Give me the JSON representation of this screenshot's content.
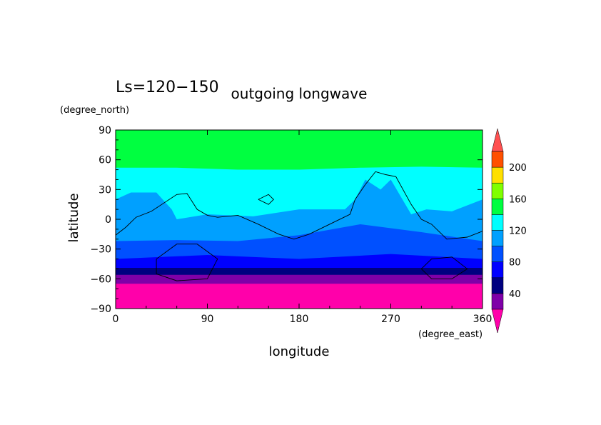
{
  "chart_data": {
    "type": "heatmap",
    "header_left": "Ls=120−150",
    "title": "outgoing longwave",
    "xlabel": "longitude",
    "ylabel": "latitude",
    "x_unit": "(degree_east)",
    "y_unit": "(degree_north)",
    "xlim": [
      0,
      360
    ],
    "ylim": [
      -90,
      90
    ],
    "x_ticks": [
      0,
      90,
      180,
      270,
      360
    ],
    "y_ticks": [
      90,
      60,
      30,
      0,
      -30,
      -60,
      -90
    ],
    "x_tick_labels": [
      "0",
      "90",
      "180",
      "270",
      "360"
    ],
    "y_tick_labels": [
      "90",
      "60",
      "30",
      "0",
      "−30",
      "−60",
      "−90"
    ],
    "colorbar": {
      "levels": [
        20,
        40,
        60,
        80,
        100,
        120,
        140,
        160,
        180,
        200,
        220
      ],
      "colors": [
        "#7f00a8",
        "#000080",
        "#0000ff",
        "#0050ff",
        "#00a0ff",
        "#00ffff",
        "#00ff40",
        "#80ff00",
        "#ffe000",
        "#ff5000",
        "#ff5050"
      ],
      "under_color": "#ff00aa",
      "over_color": "#ff5050",
      "tick_values": [
        40,
        80,
        120,
        160,
        200
      ],
      "tick_labels": [
        "40",
        "80",
        "120",
        "160",
        "200"
      ]
    },
    "bands": [
      {
        "value": 30,
        "boundary": [
          [
            0,
            -65
          ],
          [
            360,
            -65
          ]
        ]
      },
      {
        "value": 50,
        "boundary": [
          [
            0,
            -56
          ],
          [
            360,
            -56
          ]
        ]
      },
      {
        "value": 70,
        "boundary": [
          [
            0,
            -49
          ],
          [
            360,
            -49
          ]
        ]
      },
      {
        "value": 90,
        "boundary": [
          [
            0,
            -40
          ],
          [
            90,
            -36
          ],
          [
            180,
            -40
          ],
          [
            270,
            -35
          ],
          [
            360,
            -40
          ]
        ]
      },
      {
        "value": 110,
        "boundary": [
          [
            0,
            -22
          ],
          [
            60,
            -21
          ],
          [
            120,
            -22
          ],
          [
            180,
            -16
          ],
          [
            240,
            -5
          ],
          [
            300,
            -13
          ],
          [
            360,
            -22
          ]
        ]
      },
      {
        "value": 130,
        "boundary": [
          [
            0,
            20
          ],
          [
            15,
            27
          ],
          [
            40,
            27
          ],
          [
            55,
            10
          ],
          [
            60,
            0
          ],
          [
            90,
            5
          ],
          [
            135,
            3
          ],
          [
            180,
            10
          ],
          [
            225,
            10
          ],
          [
            235,
            20
          ],
          [
            245,
            40
          ],
          [
            260,
            30
          ],
          [
            270,
            40
          ],
          [
            290,
            5
          ],
          [
            305,
            10
          ],
          [
            330,
            8
          ],
          [
            360,
            20
          ]
        ]
      },
      {
        "value": 150,
        "boundary": [
          [
            0,
            52
          ],
          [
            60,
            52
          ],
          [
            120,
            50
          ],
          [
            180,
            50
          ],
          [
            240,
            52
          ],
          [
            300,
            53
          ],
          [
            360,
            52
          ]
        ]
      },
      {
        "value": 130,
        "boundary": [
          [
            0,
            90
          ],
          [
            360,
            90
          ]
        ]
      }
    ],
    "contour_lines": [
      [
        [
          0,
          -16
        ],
        [
          10,
          -8
        ],
        [
          20,
          2
        ],
        [
          35,
          8
        ],
        [
          60,
          25
        ],
        [
          70,
          26
        ],
        [
          80,
          10
        ],
        [
          90,
          4
        ],
        [
          100,
          2
        ],
        [
          120,
          4
        ],
        [
          140,
          -5
        ],
        [
          160,
          -15
        ],
        [
          175,
          -20
        ],
        [
          190,
          -15
        ],
        [
          210,
          -5
        ],
        [
          230,
          5
        ],
        [
          235,
          20
        ],
        [
          245,
          35
        ],
        [
          255,
          48
        ],
        [
          265,
          45
        ],
        [
          275,
          43
        ],
        [
          290,
          15
        ],
        [
          300,
          0
        ],
        [
          310,
          -5
        ],
        [
          325,
          -20
        ],
        [
          345,
          -18
        ],
        [
          360,
          -12
        ]
      ],
      [
        [
          140,
          20
        ],
        [
          150,
          25
        ],
        [
          155,
          20
        ],
        [
          150,
          15
        ],
        [
          140,
          20
        ]
      ],
      [
        [
          40,
          -40
        ],
        [
          60,
          -25
        ],
        [
          80,
          -25
        ],
        [
          100,
          -40
        ],
        [
          90,
          -60
        ],
        [
          60,
          -62
        ],
        [
          40,
          -55
        ],
        [
          40,
          -40
        ]
      ],
      [
        [
          300,
          -50
        ],
        [
          310,
          -40
        ],
        [
          330,
          -38
        ],
        [
          345,
          -50
        ],
        [
          330,
          -60
        ],
        [
          310,
          -60
        ],
        [
          300,
          -50
        ]
      ]
    ]
  }
}
